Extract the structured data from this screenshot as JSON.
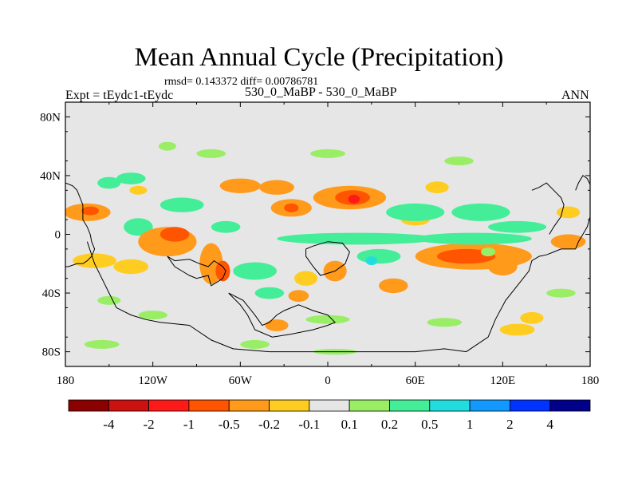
{
  "chart_data": {
    "type": "heatmap",
    "title": "Mean Annual Cycle (Precipitation)",
    "stats": "rmsd= 0.143372 diff= 0.00786781",
    "left_label": "Expt = tEydc1-tEydc",
    "center_label": "530_0_MaBP - 530_0_MaBP",
    "right_label": "ANN",
    "x_ticks": [
      {
        "lon": -180,
        "label": "180"
      },
      {
        "lon": -120,
        "label": "120W"
      },
      {
        "lon": -60,
        "label": "60W"
      },
      {
        "lon": 0,
        "label": "0"
      },
      {
        "lon": 60,
        "label": "60E"
      },
      {
        "lon": 120,
        "label": "120E"
      },
      {
        "lon": 180,
        "label": "180"
      }
    ],
    "y_ticks": [
      {
        "lat": 80,
        "label": "80N"
      },
      {
        "lat": 40,
        "label": "40N"
      },
      {
        "lat": 0,
        "label": "0"
      },
      {
        "lat": -40,
        "label": "40S"
      },
      {
        "lat": -80,
        "label": "80S"
      }
    ],
    "xlim": [
      -180,
      180
    ],
    "ylim": [
      -90,
      90
    ],
    "colorbar": {
      "colors": [
        "#8b0000",
        "#cc1111",
        "#ff1a1a",
        "#ff5500",
        "#ff9a1a",
        "#ffcc22",
        "#e6e6e6",
        "#99ee66",
        "#44ee99",
        "#22dddd",
        "#1199ff",
        "#0033ff",
        "#00008b"
      ],
      "levels": [
        "-4",
        "-2",
        "-1",
        "-0.5",
        "-0.2",
        "-0.1",
        "0.1",
        "0.2",
        "0.5",
        "1",
        "2",
        "4"
      ]
    },
    "anomalies": [
      {
        "lon": -165,
        "lat": 15,
        "rx": 16,
        "ry": 6,
        "value": -0.3
      },
      {
        "lon": -163,
        "lat": 16,
        "rx": 6,
        "ry": 3,
        "value": -0.8
      },
      {
        "lon": -130,
        "lat": 5,
        "rx": 10,
        "ry": 6,
        "value": 0.3
      },
      {
        "lon": -110,
        "lat": -5,
        "rx": 20,
        "ry": 10,
        "value": -0.3
      },
      {
        "lon": -105,
        "lat": 0,
        "rx": 10,
        "ry": 5,
        "value": -0.6
      },
      {
        "lon": -80,
        "lat": -20,
        "rx": 8,
        "ry": 14,
        "value": -0.3
      },
      {
        "lon": -72,
        "lat": -25,
        "rx": 5,
        "ry": 7,
        "value": -0.6
      },
      {
        "lon": -135,
        "lat": -22,
        "rx": 12,
        "ry": 5,
        "value": -0.2
      },
      {
        "lon": -160,
        "lat": -18,
        "rx": 15,
        "ry": 5,
        "value": -0.2
      },
      {
        "lon": -60,
        "lat": 33,
        "rx": 14,
        "ry": 5,
        "value": -0.3
      },
      {
        "lon": -35,
        "lat": 32,
        "rx": 12,
        "ry": 5,
        "value": -0.3
      },
      {
        "lon": -25,
        "lat": 18,
        "rx": 14,
        "ry": 6,
        "value": -0.3
      },
      {
        "lon": -25,
        "lat": 18,
        "rx": 5,
        "ry": 3,
        "value": -0.7
      },
      {
        "lon": 15,
        "lat": 25,
        "rx": 25,
        "ry": 8,
        "value": -0.3
      },
      {
        "lon": 17,
        "lat": 25,
        "rx": 12,
        "ry": 5,
        "value": -0.6
      },
      {
        "lon": 18,
        "lat": 24,
        "rx": 4,
        "ry": 3,
        "value": -1.5
      },
      {
        "lon": -20,
        "lat": -42,
        "rx": 7,
        "ry": 4,
        "value": -0.3
      },
      {
        "lon": -15,
        "lat": -30,
        "rx": 8,
        "ry": 5,
        "value": -0.2
      },
      {
        "lon": -35,
        "lat": -62,
        "rx": 8,
        "ry": 4,
        "value": -0.3
      },
      {
        "lon": 5,
        "lat": -25,
        "rx": 8,
        "ry": 7,
        "value": -0.3
      },
      {
        "lon": 45,
        "lat": -35,
        "rx": 10,
        "ry": 5,
        "value": -0.3
      },
      {
        "lon": 100,
        "lat": -15,
        "rx": 40,
        "ry": 9,
        "value": -0.3
      },
      {
        "lon": 95,
        "lat": -15,
        "rx": 20,
        "ry": 5,
        "value": -0.6
      },
      {
        "lon": 120,
        "lat": -22,
        "rx": 10,
        "ry": 6,
        "value": -0.3
      },
      {
        "lon": 130,
        "lat": -65,
        "rx": 12,
        "ry": 4,
        "value": -0.2
      },
      {
        "lon": 140,
        "lat": -57,
        "rx": 8,
        "ry": 4,
        "value": -0.2
      },
      {
        "lon": 165,
        "lat": -5,
        "rx": 12,
        "ry": 5,
        "value": -0.3
      },
      {
        "lon": 60,
        "lat": 10,
        "rx": 10,
        "ry": 4,
        "value": -0.2
      },
      {
        "lon": 75,
        "lat": 32,
        "rx": 8,
        "ry": 4,
        "value": -0.2
      },
      {
        "lon": 165,
        "lat": 15,
        "rx": 8,
        "ry": 4,
        "value": -0.2
      },
      {
        "lon": -130,
        "lat": 30,
        "rx": 6,
        "ry": 3,
        "value": -0.2
      },
      {
        "lon": -150,
        "lat": 35,
        "rx": 8,
        "ry": 4,
        "value": 0.3
      },
      {
        "lon": -135,
        "lat": 38,
        "rx": 10,
        "ry": 4,
        "value": 0.3
      },
      {
        "lon": -100,
        "lat": 20,
        "rx": 15,
        "ry": 5,
        "value": 0.3
      },
      {
        "lon": 60,
        "lat": 15,
        "rx": 20,
        "ry": 6,
        "value": 0.3
      },
      {
        "lon": 105,
        "lat": 15,
        "rx": 20,
        "ry": 6,
        "value": 0.3
      },
      {
        "lon": 20,
        "lat": -3,
        "rx": 55,
        "ry": 4,
        "value": 0.3
      },
      {
        "lon": 100,
        "lat": -3,
        "rx": 40,
        "ry": 4,
        "value": 0.3
      },
      {
        "lon": 130,
        "lat": 5,
        "rx": 20,
        "ry": 4,
        "value": 0.3
      },
      {
        "lon": 35,
        "lat": -15,
        "rx": 15,
        "ry": 5,
        "value": 0.3
      },
      {
        "lon": 30,
        "lat": -18,
        "rx": 4,
        "ry": 3,
        "value": 0.8
      },
      {
        "lon": -50,
        "lat": -25,
        "rx": 15,
        "ry": 6,
        "value": 0.3
      },
      {
        "lon": -40,
        "lat": -40,
        "rx": 10,
        "ry": 4,
        "value": 0.3
      },
      {
        "lon": -70,
        "lat": 5,
        "rx": 10,
        "ry": 4,
        "value": 0.3
      },
      {
        "lon": -150,
        "lat": -45,
        "rx": 8,
        "ry": 3,
        "value": 0.15
      },
      {
        "lon": -120,
        "lat": -55,
        "rx": 10,
        "ry": 3,
        "value": 0.15
      },
      {
        "lon": 0,
        "lat": -58,
        "rx": 15,
        "ry": 3,
        "value": 0.15
      },
      {
        "lon": 80,
        "lat": -60,
        "rx": 12,
        "ry": 3,
        "value": 0.15
      },
      {
        "lon": 160,
        "lat": -40,
        "rx": 10,
        "ry": 3,
        "value": 0.15
      },
      {
        "lon": -80,
        "lat": 55,
        "rx": 10,
        "ry": 3,
        "value": 0.15
      },
      {
        "lon": 0,
        "lat": 55,
        "rx": 12,
        "ry": 3,
        "value": 0.15
      },
      {
        "lon": 90,
        "lat": 50,
        "rx": 10,
        "ry": 3,
        "value": 0.15
      },
      {
        "lon": -110,
        "lat": 60,
        "rx": 6,
        "ry": 3,
        "value": 0.15
      },
      {
        "lon": -155,
        "lat": -75,
        "rx": 12,
        "ry": 3,
        "value": 0.15
      },
      {
        "lon": -50,
        "lat": -75,
        "rx": 10,
        "ry": 3,
        "value": 0.15
      },
      {
        "lon": 5,
        "lat": -80,
        "rx": 15,
        "ry": 2,
        "value": 0.15
      },
      {
        "lon": 110,
        "lat": -12,
        "rx": 5,
        "ry": 3,
        "value": 0.15
      }
    ],
    "coastlines": [
      [
        [
          -180,
          35
        ],
        [
          -175,
          33
        ],
        [
          -172,
          30
        ],
        [
          -170,
          25
        ],
        [
          -168,
          20
        ],
        [
          -168,
          10
        ],
        [
          -165,
          5
        ],
        [
          -163,
          0
        ],
        [
          -162,
          -5
        ],
        [
          -160,
          -10
        ],
        [
          -162,
          -15
        ],
        [
          -165,
          -18
        ],
        [
          -168,
          -20
        ],
        [
          -172,
          -20
        ],
        [
          -178,
          -22
        ],
        [
          -180,
          -22
        ]
      ],
      [
        [
          -165,
          -5
        ],
        [
          -160,
          -20
        ],
        [
          -155,
          -30
        ],
        [
          -150,
          -40
        ],
        [
          -145,
          -50
        ],
        [
          -135,
          -55
        ],
        [
          -125,
          -58
        ],
        [
          -115,
          -60
        ],
        [
          -95,
          -62
        ],
        [
          -80,
          -72
        ],
        [
          -65,
          -78
        ],
        [
          -40,
          -80
        ],
        [
          -5,
          -80
        ],
        [
          25,
          -80
        ],
        [
          60,
          -80
        ],
        [
          80,
          -78
        ],
        [
          95,
          -80
        ],
        [
          110,
          -70
        ],
        [
          115,
          -58
        ],
        [
          122,
          -45
        ],
        [
          130,
          -35
        ],
        [
          138,
          -25
        ],
        [
          140,
          -18
        ],
        [
          145,
          -15
        ],
        [
          150,
          -14
        ],
        [
          155,
          -12
        ],
        [
          160,
          -10
        ],
        [
          165,
          -10
        ],
        [
          170,
          -10
        ],
        [
          172,
          -5
        ],
        [
          175,
          0
        ],
        [
          178,
          5
        ],
        [
          180,
          12
        ]
      ],
      [
        [
          -110,
          -15
        ],
        [
          -105,
          -18
        ],
        [
          -95,
          -17
        ],
        [
          -88,
          -20
        ],
        [
          -82,
          -22
        ],
        [
          -78,
          -18
        ],
        [
          -72,
          -22
        ],
        [
          -70,
          -25
        ],
        [
          -72,
          -30
        ],
        [
          -75,
          -32
        ],
        [
          -80,
          -35
        ],
        [
          -82,
          -28
        ],
        [
          -90,
          -30
        ],
        [
          -95,
          -28
        ],
        [
          -100,
          -25
        ],
        [
          -105,
          -22
        ],
        [
          -110,
          -15
        ]
      ],
      [
        [
          -68,
          -40
        ],
        [
          -58,
          -45
        ],
        [
          -50,
          -55
        ],
        [
          -45,
          -62
        ],
        [
          -40,
          -60
        ],
        [
          -35,
          -55
        ],
        [
          -30,
          -52
        ],
        [
          -25,
          -50
        ],
        [
          -20,
          -48
        ],
        [
          -15,
          -50
        ],
        [
          -10,
          -52
        ],
        [
          0,
          -55
        ],
        [
          5,
          -60
        ],
        [
          0,
          -62
        ],
        [
          -10,
          -65
        ],
        [
          -25,
          -68
        ],
        [
          -38,
          -70
        ],
        [
          -50,
          -65
        ],
        [
          -55,
          -55
        ],
        [
          -60,
          -48
        ],
        [
          -68,
          -40
        ]
      ],
      [
        [
          -15,
          -10
        ],
        [
          -10,
          -8
        ],
        [
          0,
          -5
        ],
        [
          10,
          -6
        ],
        [
          15,
          -12
        ],
        [
          12,
          -20
        ],
        [
          5,
          -25
        ],
        [
          -5,
          -28
        ],
        [
          -10,
          -22
        ],
        [
          -15,
          -15
        ],
        [
          -15,
          -10
        ]
      ],
      [
        [
          140,
          30
        ],
        [
          145,
          32
        ],
        [
          150,
          35
        ],
        [
          155,
          30
        ],
        [
          160,
          25
        ],
        [
          162,
          20
        ],
        [
          160,
          12
        ],
        [
          155,
          5
        ],
        [
          152,
          0
        ]
      ],
      [
        [
          170,
          30
        ],
        [
          172,
          35
        ],
        [
          175,
          40
        ],
        [
          178,
          38
        ],
        [
          180,
          34
        ]
      ]
    ]
  }
}
